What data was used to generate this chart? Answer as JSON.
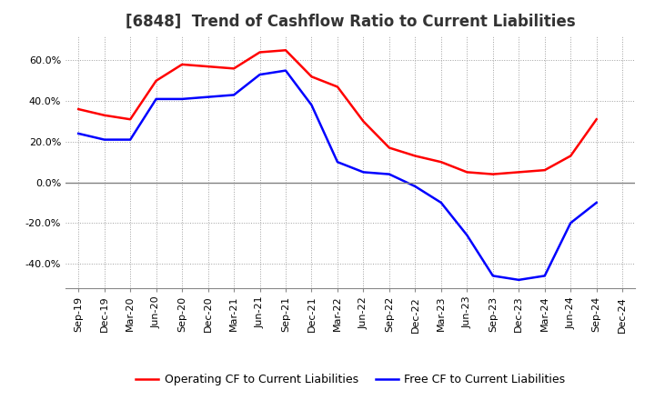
{
  "title": "[6848]  Trend of Cashflow Ratio to Current Liabilities",
  "x_labels": [
    "Sep-19",
    "Dec-19",
    "Mar-20",
    "Jun-20",
    "Sep-20",
    "Dec-20",
    "Mar-21",
    "Jun-21",
    "Sep-21",
    "Dec-21",
    "Mar-22",
    "Jun-22",
    "Sep-22",
    "Dec-22",
    "Mar-23",
    "Jun-23",
    "Sep-23",
    "Dec-23",
    "Mar-24",
    "Jun-24",
    "Sep-24",
    "Dec-24"
  ],
  "operating_cf": [
    0.36,
    0.33,
    0.31,
    0.5,
    0.58,
    0.57,
    0.56,
    0.64,
    0.65,
    0.52,
    0.47,
    0.3,
    0.17,
    0.13,
    0.1,
    0.05,
    0.04,
    0.05,
    0.06,
    0.13,
    0.31,
    null
  ],
  "free_cf": [
    0.24,
    0.21,
    0.21,
    0.41,
    0.41,
    0.42,
    0.43,
    0.53,
    0.55,
    0.38,
    0.1,
    0.05,
    0.04,
    -0.02,
    -0.1,
    -0.26,
    -0.46,
    -0.48,
    -0.46,
    -0.2,
    -0.1,
    null
  ],
  "operating_color": "#ff0000",
  "free_color": "#0000ff",
  "ylim": [
    -0.52,
    0.72
  ],
  "yticks": [
    -0.4,
    -0.2,
    0.0,
    0.2,
    0.4,
    0.6
  ],
  "background_color": "#ffffff",
  "grid_color": "#a0a0a0",
  "zero_line_color": "#808080",
  "legend_op": "Operating CF to Current Liabilities",
  "legend_free": "Free CF to Current Liabilities",
  "title_fontsize": 12,
  "axis_fontsize": 8,
  "legend_fontsize": 9,
  "linewidth": 1.8
}
